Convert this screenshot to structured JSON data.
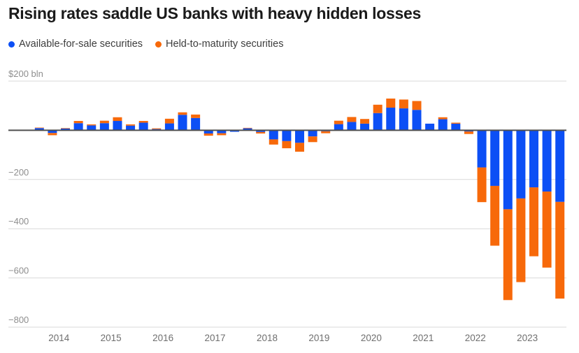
{
  "header": {
    "title": "Rising rates saddle US banks with heavy hidden losses"
  },
  "legend": [
    {
      "label": "Available-for-sale securities",
      "color": "#0c4ff5"
    },
    {
      "label": "Held-to-maturity securities",
      "color": "#f7690a"
    }
  ],
  "y_axis": {
    "ticks": [
      {
        "value": 200,
        "label": "$200 bln"
      },
      {
        "value": 0,
        "label": ""
      },
      {
        "value": -200,
        "label": "−200"
      },
      {
        "value": -400,
        "label": "−400"
      },
      {
        "value": -600,
        "label": "−600"
      },
      {
        "value": -800,
        "label": "−800"
      }
    ]
  },
  "x_axis": {
    "years": [
      "2014",
      "2015",
      "2016",
      "2017",
      "2018",
      "2019",
      "2020",
      "2021",
      "2022",
      "2023"
    ]
  },
  "chart_data": {
    "type": "bar",
    "stacked": true,
    "title": "Rising rates saddle US banks with heavy hidden losses",
    "unit": "$ bln",
    "ylim": [
      -800,
      200
    ],
    "grid": true,
    "legend_position": "top-left",
    "x": [
      "2013 Q3",
      "2013 Q4",
      "2014 Q1",
      "2014 Q2",
      "2014 Q3",
      "2014 Q4",
      "2015 Q1",
      "2015 Q2",
      "2015 Q3",
      "2015 Q4",
      "2016 Q1",
      "2016 Q2",
      "2016 Q3",
      "2016 Q4",
      "2017 Q1",
      "2017 Q2",
      "2017 Q3",
      "2017 Q4",
      "2018 Q1",
      "2018 Q2",
      "2018 Q3",
      "2018 Q4",
      "2019 Q1",
      "2019 Q2",
      "2019 Q3",
      "2019 Q4",
      "2020 Q1",
      "2020 Q2",
      "2020 Q3",
      "2020 Q4",
      "2021 Q1",
      "2021 Q2",
      "2021 Q3",
      "2021 Q4",
      "2022 Q1",
      "2022 Q2",
      "2022 Q3",
      "2022 Q4",
      "2023 Q1",
      "2023 Q2",
      "2023 Q3"
    ],
    "series": [
      {
        "name": "Available-for-sale securities",
        "color": "#0c4ff5",
        "values": [
          9,
          -11,
          7,
          29,
          20,
          29,
          38,
          19,
          31,
          5,
          28,
          63,
          50,
          -13,
          -12,
          -6,
          8,
          -7,
          -37,
          -44,
          -51,
          -25,
          -4,
          25,
          34,
          27,
          70,
          92,
          89,
          83,
          27,
          45,
          27,
          -5,
          -151,
          -226,
          -321,
          -277,
          -232,
          -249,
          -291
        ]
      },
      {
        "name": "Held-to-maturity securities",
        "color": "#f7690a",
        "values": [
          2,
          -9,
          2,
          9,
          4,
          10,
          15,
          5,
          7,
          3,
          19,
          10,
          14,
          -9,
          -8,
          0,
          2,
          -6,
          -21,
          -29,
          -36,
          -23,
          -8,
          14,
          20,
          19,
          34,
          37,
          36,
          36,
          0,
          8,
          4,
          -10,
          -141,
          -243,
          -369,
          -340,
          -280,
          -309,
          -393
        ]
      }
    ]
  }
}
